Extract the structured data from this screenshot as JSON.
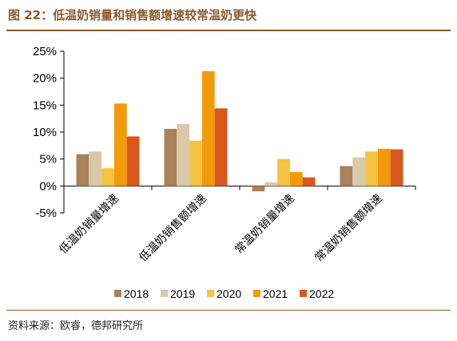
{
  "title": "图 22：低温奶销量和销售额增速较常温奶更快",
  "source": "资料来源：欧睿，德邦研究所",
  "chart_data": {
    "type": "bar",
    "categories": [
      "低温奶销量增速",
      "低温奶销售额增速",
      "常温奶销量增速",
      "常温奶销售额增速"
    ],
    "series": [
      {
        "name": "2018",
        "color": "#A9825A",
        "values": [
          5.9,
          10.6,
          -1.0,
          3.7
        ]
      },
      {
        "name": "2019",
        "color": "#D9C9A8",
        "values": [
          6.4,
          11.5,
          0.7,
          5.3
        ]
      },
      {
        "name": "2020",
        "color": "#F5C242",
        "values": [
          3.3,
          8.4,
          5.0,
          6.4
        ]
      },
      {
        "name": "2021",
        "color": "#F39A0B",
        "values": [
          15.3,
          21.3,
          2.6,
          6.9
        ]
      },
      {
        "name": "2022",
        "color": "#D9581E",
        "values": [
          9.2,
          14.4,
          1.6,
          6.8
        ]
      }
    ],
    "ylim": [
      -5,
      25
    ],
    "yticks": [
      -5,
      0,
      5,
      10,
      15,
      20,
      25
    ],
    "tick_suffix": "%",
    "legend": "bottom"
  }
}
